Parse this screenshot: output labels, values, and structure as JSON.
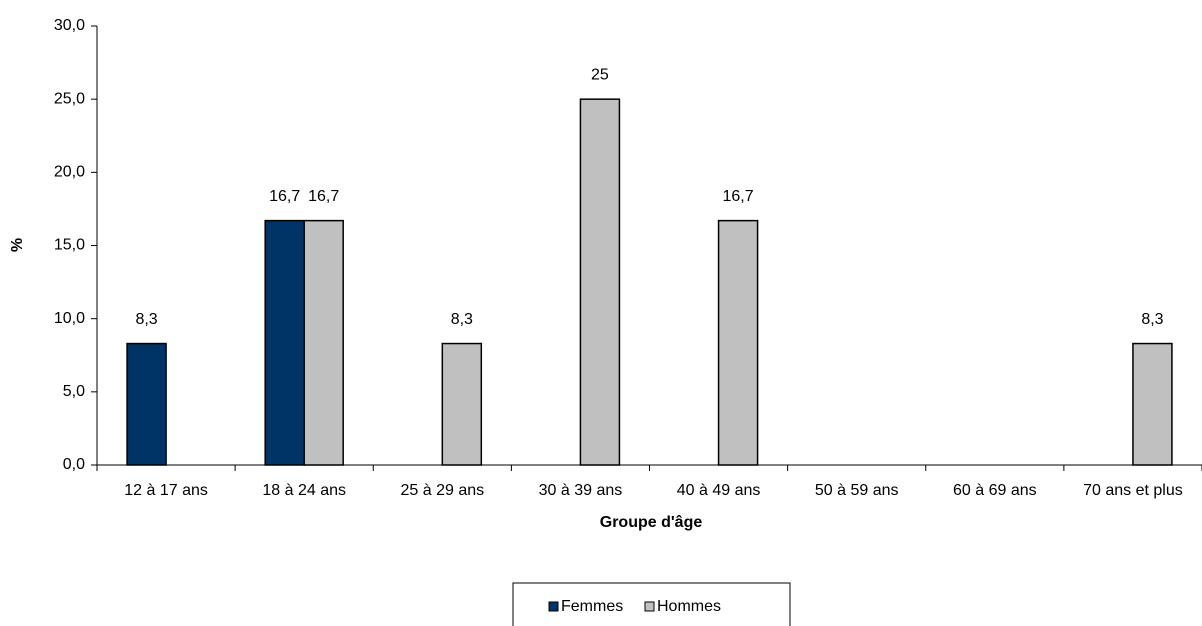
{
  "chart_data": {
    "type": "bar",
    "x_label": "Groupe d'âge",
    "y_label": "%",
    "categories": [
      "12 à 17 ans",
      "18 à 24 ans",
      "25 à 29 ans",
      "30 à 39 ans",
      "40 à 49 ans",
      "50 à 59 ans",
      "60 à 69 ans",
      "70 ans et plus"
    ],
    "series": [
      {
        "name": "Femmes",
        "color": "#003366",
        "values": [
          8.3,
          16.7,
          null,
          null,
          null,
          null,
          null,
          null
        ],
        "value_labels": [
          "8,3",
          "16,7",
          null,
          null,
          null,
          null,
          null,
          null
        ]
      },
      {
        "name": "Hommes",
        "color": "#c0c0c0",
        "values": [
          null,
          16.7,
          8.3,
          25,
          16.7,
          null,
          null,
          8.3
        ],
        "value_labels": [
          null,
          "16,7",
          "8,3",
          "25",
          "16,7",
          null,
          null,
          "8,3"
        ]
      }
    ],
    "ylim": [
      0,
      30
    ],
    "yticks": [
      {
        "value": 0,
        "label": "0,0"
      },
      {
        "value": 5,
        "label": "5,0"
      },
      {
        "value": 10,
        "label": "10,0"
      },
      {
        "value": 15,
        "label": "15,0"
      },
      {
        "value": 20,
        "label": "20,0"
      },
      {
        "value": 25,
        "label": "25,0"
      },
      {
        "value": 30,
        "label": "30,0"
      }
    ],
    "grid": false,
    "legend": "bottom"
  }
}
